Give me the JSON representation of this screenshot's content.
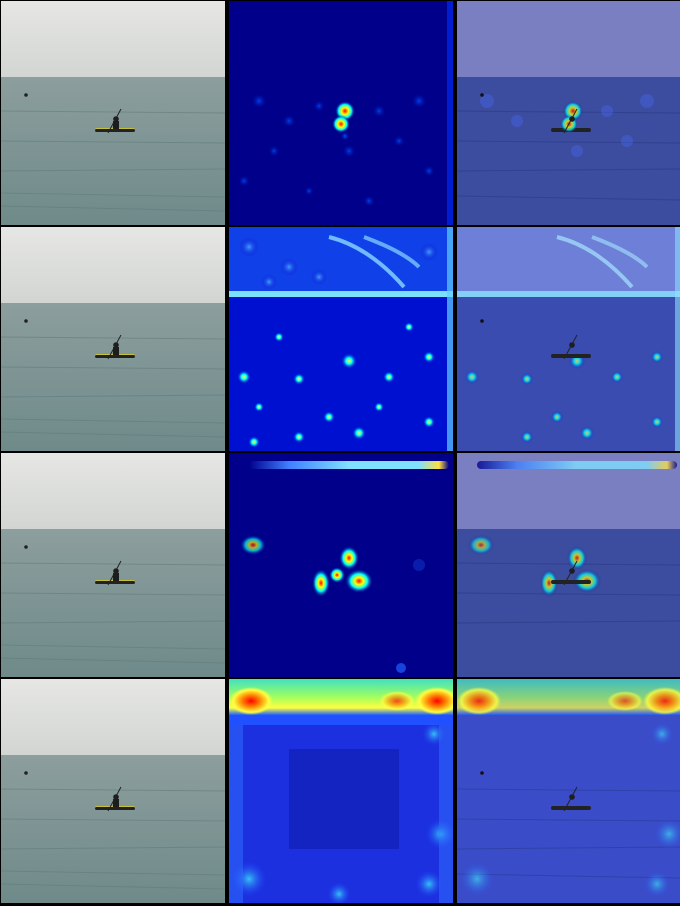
{
  "figure": {
    "rows": [
      {
        "row": 1,
        "columns": [
          "original-photo",
          "attention-heatmap",
          "heatmap-overlay"
        ],
        "heatmap_focus": "kayak"
      },
      {
        "row": 2,
        "columns": [
          "original-photo",
          "attention-heatmap",
          "heatmap-overlay"
        ],
        "heatmap_focus": "scattered-water-and-sky"
      },
      {
        "row": 3,
        "columns": [
          "original-photo",
          "attention-heatmap",
          "heatmap-overlay"
        ],
        "heatmap_focus": "kayak-and-buoy"
      },
      {
        "row": 4,
        "columns": [
          "original-photo",
          "attention-heatmap",
          "heatmap-overlay"
        ],
        "heatmap_focus": "top-edge-and-borders"
      }
    ],
    "photo_colors": {
      "sky": "#d9dbd8",
      "sea": "#7f9595",
      "kayak": "#1f2a1c",
      "kayak_hull": "#c8c23a"
    },
    "heatmap_colors": {
      "low": "#00008b",
      "mid": "#00bfff",
      "high": "#ffff00",
      "peak": "#ff0000"
    }
  }
}
